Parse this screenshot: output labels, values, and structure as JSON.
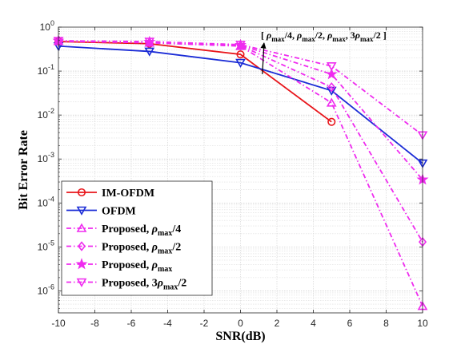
{
  "chart_data": {
    "type": "line",
    "xlabel": "SNR(dB)",
    "ylabel": "Bit Error Rate",
    "xlim": [
      -10,
      10
    ],
    "ylim": [
      3e-07,
      1
    ],
    "yscale": "log",
    "xticks": [
      -10,
      -8,
      -6,
      -4,
      -2,
      0,
      2,
      4,
      6,
      8,
      10
    ],
    "grid": true,
    "legend_position": "bottom-left",
    "annotation": {
      "parts": [
        {
          "t": "[ ",
          "style": "n"
        },
        {
          "t": "ρ",
          "style": "i"
        },
        {
          "t": "max",
          "style": "s"
        },
        {
          "t": "/4, ",
          "style": "n"
        },
        {
          "t": "ρ",
          "style": "i"
        },
        {
          "t": "max",
          "style": "s"
        },
        {
          "t": "/2, ",
          "style": "n"
        },
        {
          "t": "ρ",
          "style": "i"
        },
        {
          "t": "max",
          "style": "s"
        },
        {
          "t": ", 3",
          "style": "n"
        },
        {
          "t": "ρ",
          "style": "i"
        },
        {
          "t": "max",
          "style": "s"
        },
        {
          "t": "/2 ]",
          "style": "n"
        }
      ],
      "arrow_at": [
        1.2,
        0.085
      ]
    },
    "series": [
      {
        "legend": [
          {
            "t": "IM-OFDM",
            "style": "n"
          }
        ],
        "color": "#e8141a",
        "dash": "solid",
        "marker": "circle",
        "x": [
          -10,
          -5,
          0,
          5
        ],
        "y": [
          0.47,
          0.42,
          0.24,
          0.007
        ]
      },
      {
        "legend": [
          {
            "t": "OFDM",
            "style": "n"
          }
        ],
        "color": "#1a2bd6",
        "dash": "solid",
        "marker": "triangle-down",
        "x": [
          -10,
          -5,
          0,
          5,
          10
        ],
        "y": [
          0.37,
          0.28,
          0.155,
          0.036,
          0.0008
        ]
      },
      {
        "legend": [
          {
            "t": "Proposed, ",
            "style": "n"
          },
          {
            "t": "ρ",
            "style": "i"
          },
          {
            "t": "max",
            "style": "s"
          },
          {
            "t": "/4",
            "style": "n"
          }
        ],
        "color": "#ef2bef",
        "dash": "dashdot",
        "marker": "triangle-up",
        "x": [
          -10,
          -5,
          0,
          5,
          10
        ],
        "y": [
          0.48,
          0.44,
          0.37,
          0.019,
          4.5e-07
        ]
      },
      {
        "legend": [
          {
            "t": "Proposed, ",
            "style": "n"
          },
          {
            "t": "ρ",
            "style": "i"
          },
          {
            "t": "max",
            "style": "s"
          },
          {
            "t": "/2",
            "style": "n"
          }
        ],
        "color": "#ef2bef",
        "dash": "dashdot",
        "marker": "diamond",
        "x": [
          -10,
          -5,
          0,
          5,
          10
        ],
        "y": [
          0.48,
          0.45,
          0.38,
          0.043,
          1.3e-05
        ]
      },
      {
        "legend": [
          {
            "t": "Proposed, ",
            "style": "n"
          },
          {
            "t": "ρ",
            "style": "i"
          },
          {
            "t": "max",
            "style": "s"
          }
        ],
        "color": "#ef2bef",
        "dash": "dashdot",
        "marker": "star",
        "x": [
          -10,
          -5,
          0,
          5,
          10
        ],
        "y": [
          0.49,
          0.46,
          0.39,
          0.085,
          0.00034
        ]
      },
      {
        "legend": [
          {
            "t": "Proposed, 3",
            "style": "n"
          },
          {
            "t": "ρ",
            "style": "i"
          },
          {
            "t": "max",
            "style": "s"
          },
          {
            "t": "/2",
            "style": "n"
          }
        ],
        "color": "#ef2bef",
        "dash": "dashdot",
        "marker": "triangle-down",
        "x": [
          -10,
          -5,
          0,
          5,
          10
        ],
        "y": [
          0.49,
          0.47,
          0.4,
          0.13,
          0.0035
        ]
      }
    ]
  }
}
